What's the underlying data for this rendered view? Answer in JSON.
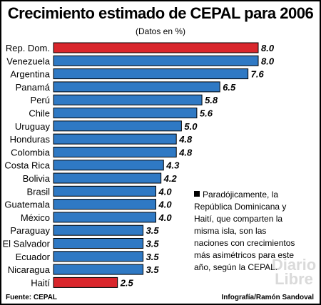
{
  "header": {
    "title": "Crecimiento estimado de CEPAL para 2006",
    "subtitle": "(Datos en %)"
  },
  "note": {
    "text": "Paradójicamente, la República Dominicana y Haití, que comparten la misma isla, son las naciones con crecimientos más asimétricos para este año, según la CEPAL."
  },
  "footer": {
    "source": "Fuente: CEPAL",
    "credit": "Infografía/Ramón Sandoval"
  },
  "watermark": "Diario Libre",
  "colors": {
    "highlight": "#d9262c",
    "default": "#2f79c4",
    "stroke": "#000000"
  },
  "chart_data": {
    "type": "bar",
    "orientation": "horizontal",
    "categories": [
      "Rep. Dom.",
      "Venezuela",
      "Argentina",
      "Panamá",
      "Perú",
      "Chile",
      "Uruguay",
      "Honduras",
      "Colombia",
      "Costa Rica",
      "Bolivia",
      "Brasil",
      "Guatemala",
      "México",
      "Paraguay",
      "El Salvador",
      "Ecuador",
      "Nicaragua",
      "Haití"
    ],
    "values": [
      8.0,
      8.0,
      7.6,
      6.5,
      5.8,
      5.6,
      5.0,
      4.8,
      4.8,
      4.3,
      4.2,
      4.0,
      4.0,
      4.0,
      3.5,
      3.5,
      3.5,
      3.5,
      2.5
    ],
    "value_labels": [
      "8.0",
      "8.0",
      "7.6",
      "6.5",
      "5.8",
      "5.6",
      "5.0",
      "4.8",
      "4.8",
      "4.3",
      "4.2",
      "4.0",
      "4.0",
      "4.0",
      "3.5",
      "3.5",
      "3.5",
      "3.5",
      "2.5"
    ],
    "highlighted": [
      "Rep. Dom.",
      "Haití"
    ],
    "xlim": [
      0,
      8.0
    ],
    "grid": false,
    "title": "Crecimiento estimado de CEPAL para 2006",
    "xlabel": "",
    "ylabel": ""
  }
}
